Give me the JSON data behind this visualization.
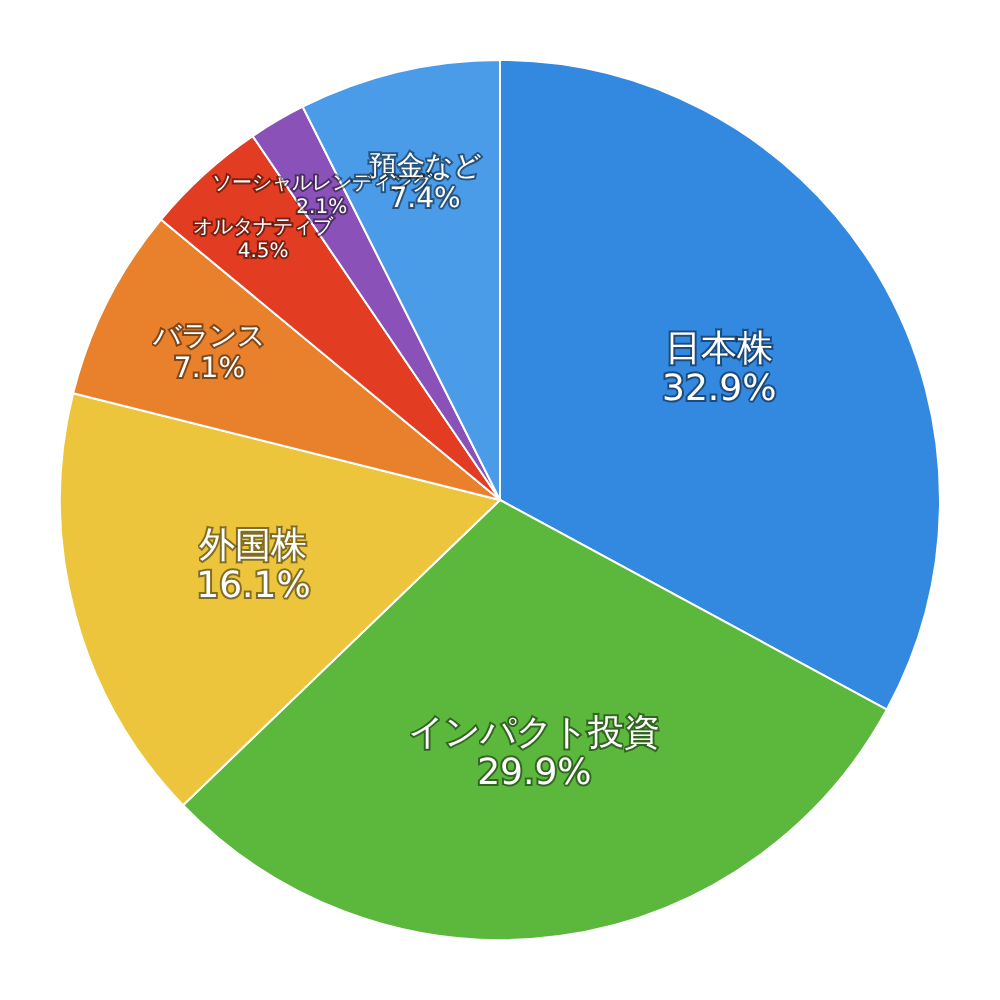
{
  "chart_data": {
    "type": "pie",
    "categories": [
      "日本株",
      "インパクト投資",
      "外国株",
      "バランス",
      "オルタナティブ",
      "ソーシャルレンディング",
      "預金など"
    ],
    "values": [
      32.9,
      29.9,
      16.1,
      7.1,
      4.5,
      2.1,
      7.4
    ],
    "value_labels": [
      "32.9%",
      "29.9%",
      "16.1%",
      "7.1%",
      "4.5%",
      "2.1%",
      "7.4%"
    ],
    "colors": [
      "#3388e0",
      "#5cb83c",
      "#ecc53c",
      "#e8802c",
      "#e23c22",
      "#8a52b8",
      "#4a9be8"
    ],
    "legend": false
  }
}
